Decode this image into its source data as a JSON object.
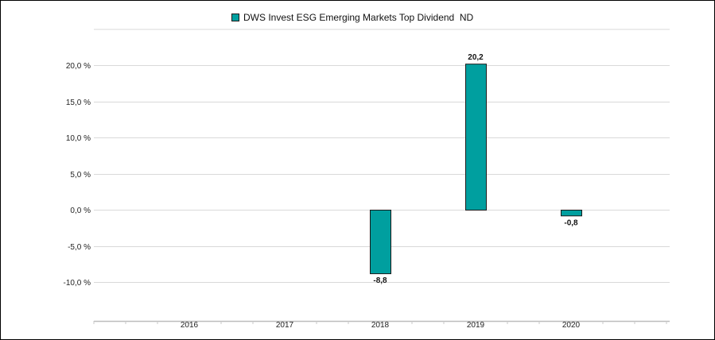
{
  "chart_data": {
    "type": "bar",
    "categories": [
      "2016",
      "2017",
      "2018",
      "2019",
      "2020"
    ],
    "series": [
      {
        "name": "DWS Invest ESG Emerging Markets Top Dividend  ND",
        "values": [
          null,
          null,
          -8.8,
          20.2,
          -0.8
        ],
        "data_labels": [
          "",
          "",
          "-8,8",
          "20,2",
          "-0,8"
        ],
        "color": "#009f9f"
      }
    ],
    "y_ticks": [
      {
        "value": 20,
        "label": "20,0 %"
      },
      {
        "value": 15,
        "label": "15,0 %"
      },
      {
        "value": 10,
        "label": "10,0 %"
      },
      {
        "value": 5,
        "label": "5,0 %"
      },
      {
        "value": 0,
        "label": "0,0 %"
      },
      {
        "value": -5,
        "label": "-5,0 %"
      },
      {
        "value": -10,
        "label": "-10,0 %"
      }
    ],
    "ylim": [
      -15,
      25
    ],
    "grid": true,
    "legend_position": "top-center",
    "title": "",
    "xlabel": "",
    "ylabel": ""
  }
}
